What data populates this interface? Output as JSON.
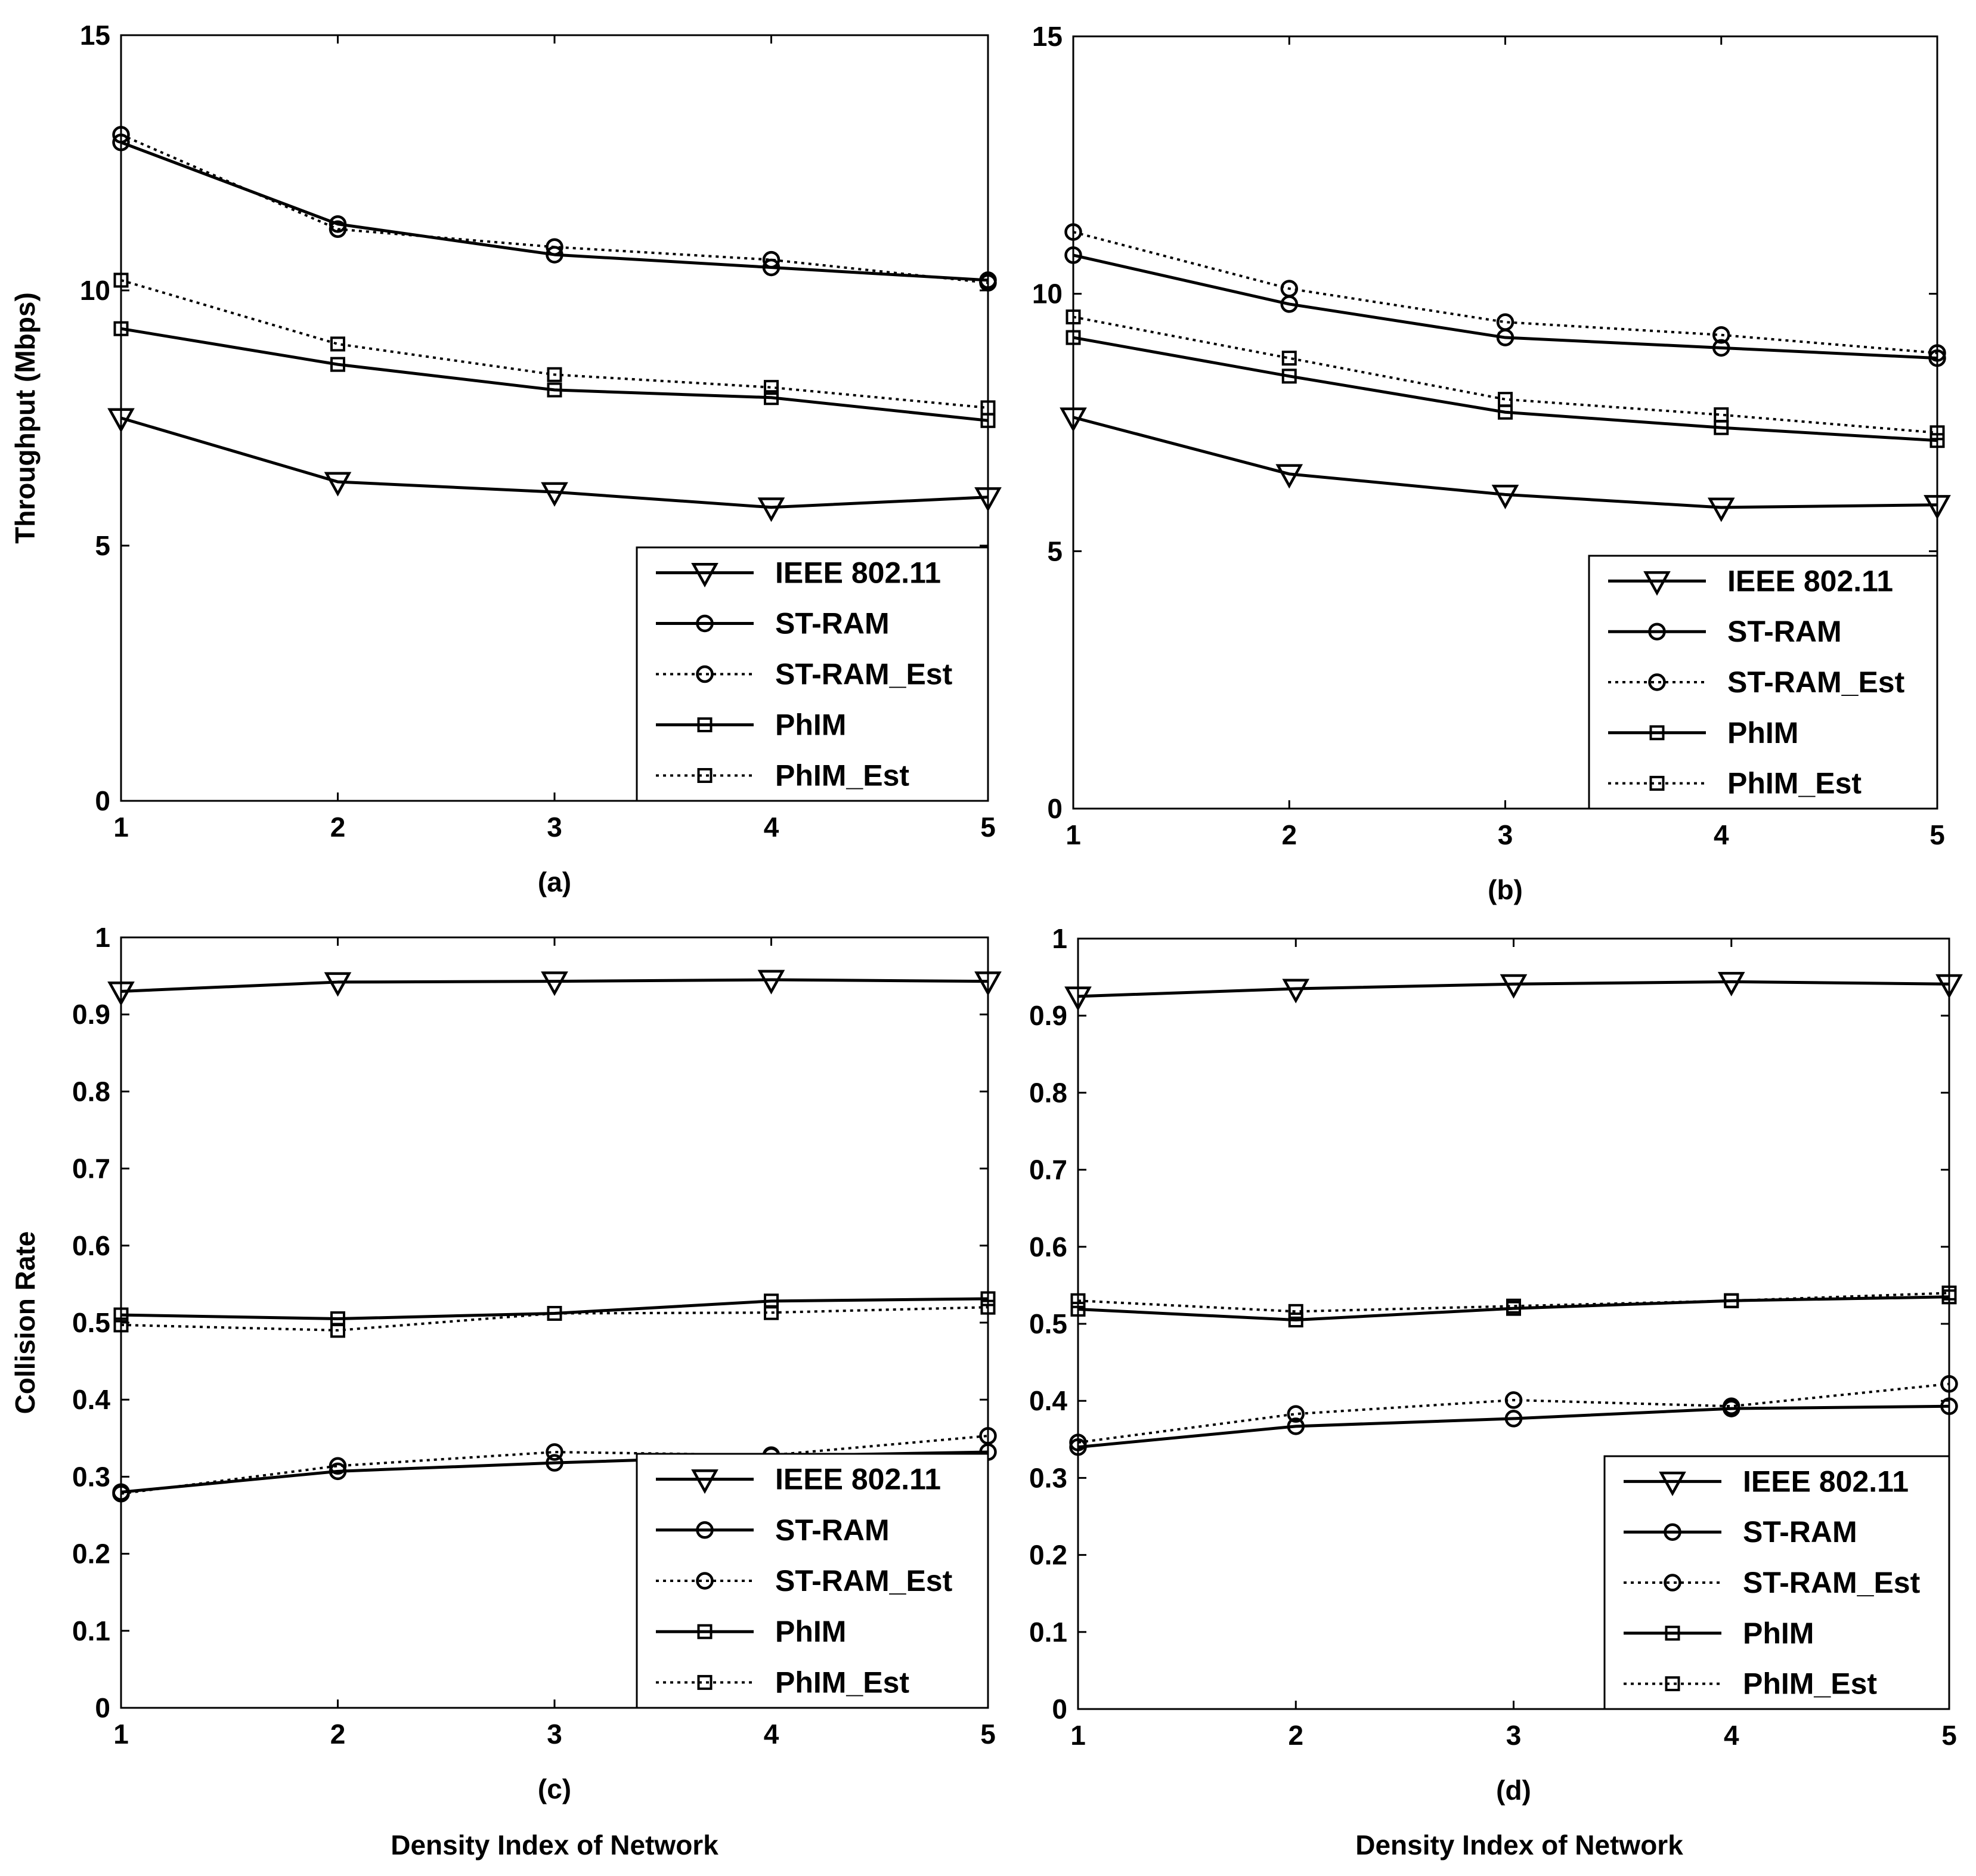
{
  "x_axis_label": "Density Index of Network",
  "chart_data": [
    {
      "type": "line",
      "panel_label": "(a)",
      "ylabel": "Throughput (Mbps)",
      "xlabel": "",
      "x": [
        1,
        2,
        3,
        4,
        5
      ],
      "xlim": [
        1,
        5
      ],
      "ylim": [
        0,
        15
      ],
      "xticks": [
        "1",
        "2",
        "3",
        "4",
        "5"
      ],
      "yticks": [
        "0",
        "5",
        "10",
        "15"
      ],
      "legend_position": "bottom-right",
      "series": [
        {
          "name": "IEEE 802.11",
          "marker": "triangle-down",
          "style": "solid",
          "values": [
            7.5,
            6.25,
            6.05,
            5.75,
            5.95
          ]
        },
        {
          "name": "ST-RAM",
          "marker": "circle",
          "style": "solid",
          "values": [
            12.9,
            11.3,
            10.7,
            10.45,
            10.2
          ]
        },
        {
          "name": "ST-RAM_Est",
          "marker": "circle",
          "style": "dotted",
          "values": [
            13.05,
            11.2,
            10.85,
            10.6,
            10.15
          ]
        },
        {
          "name": "PhIM",
          "marker": "square",
          "style": "solid",
          "values": [
            9.25,
            8.55,
            8.05,
            7.9,
            7.45
          ]
        },
        {
          "name": "PhIM_Est",
          "marker": "square",
          "style": "dotted",
          "values": [
            10.2,
            8.95,
            8.35,
            8.1,
            7.7
          ]
        }
      ]
    },
    {
      "type": "line",
      "panel_label": "(b)",
      "ylabel": "",
      "xlabel": "",
      "x": [
        1,
        2,
        3,
        4,
        5
      ],
      "xlim": [
        1,
        5
      ],
      "ylim": [
        0,
        15
      ],
      "xticks": [
        "1",
        "2",
        "3",
        "4",
        "5"
      ],
      "yticks": [
        "0",
        "5",
        "10",
        "15"
      ],
      "legend_position": "bottom-right",
      "series": [
        {
          "name": "IEEE 802.11",
          "marker": "triangle-down",
          "style": "solid",
          "values": [
            7.6,
            6.5,
            6.1,
            5.85,
            5.9
          ]
        },
        {
          "name": "ST-RAM",
          "marker": "circle",
          "style": "solid",
          "values": [
            10.75,
            9.8,
            9.15,
            8.95,
            8.75
          ]
        },
        {
          "name": "ST-RAM_Est",
          "marker": "circle",
          "style": "dotted",
          "values": [
            11.2,
            10.1,
            9.45,
            9.2,
            8.85
          ]
        },
        {
          "name": "PhIM",
          "marker": "square",
          "style": "solid",
          "values": [
            9.15,
            8.4,
            7.7,
            7.4,
            7.15
          ]
        },
        {
          "name": "PhIM_Est",
          "marker": "square",
          "style": "dotted",
          "values": [
            9.55,
            8.75,
            7.95,
            7.65,
            7.3
          ]
        }
      ]
    },
    {
      "type": "line",
      "panel_label": "(c)",
      "ylabel": "Collision Rate",
      "xlabel": "",
      "x": [
        1,
        2,
        3,
        4,
        5
      ],
      "xlim": [
        1,
        5
      ],
      "ylim": [
        0,
        1
      ],
      "xticks": [
        "1",
        "2",
        "3",
        "4",
        "5"
      ],
      "yticks": [
        "0",
        "0.1",
        "0.2",
        "0.3",
        "0.4",
        "0.5",
        "0.6",
        "0.7",
        "0.8",
        "0.9",
        "1"
      ],
      "legend_position": "bottom-right",
      "series": [
        {
          "name": "IEEE 802.11",
          "marker": "triangle-down",
          "style": "solid",
          "values": [
            0.93,
            0.942,
            0.943,
            0.945,
            0.943
          ]
        },
        {
          "name": "ST-RAM",
          "marker": "circle",
          "style": "solid",
          "values": [
            0.28,
            0.307,
            0.318,
            0.327,
            0.332
          ]
        },
        {
          "name": "ST-RAM_Est",
          "marker": "circle",
          "style": "dotted",
          "values": [
            0.278,
            0.314,
            0.332,
            0.328,
            0.353
          ]
        },
        {
          "name": "PhIM",
          "marker": "square",
          "style": "solid",
          "values": [
            0.51,
            0.505,
            0.512,
            0.528,
            0.531
          ]
        },
        {
          "name": "PhIM_Est",
          "marker": "square",
          "style": "dotted",
          "values": [
            0.497,
            0.49,
            0.512,
            0.513,
            0.52
          ]
        }
      ]
    },
    {
      "type": "line",
      "panel_label": "(d)",
      "ylabel": "",
      "xlabel": "",
      "x": [
        1,
        2,
        3,
        4,
        5
      ],
      "xlim": [
        1,
        5
      ],
      "ylim": [
        0,
        1
      ],
      "xticks": [
        "1",
        "2",
        "3",
        "4",
        "5"
      ],
      "yticks": [
        "0",
        "0.1",
        "0.2",
        "0.3",
        "0.4",
        "0.5",
        "0.6",
        "0.7",
        "0.8",
        "0.9",
        "1"
      ],
      "legend_position": "bottom-right",
      "series": [
        {
          "name": "IEEE 802.11",
          "marker": "triangle-down",
          "style": "solid",
          "values": [
            0.925,
            0.935,
            0.941,
            0.944,
            0.941
          ]
        },
        {
          "name": "ST-RAM",
          "marker": "circle",
          "style": "solid",
          "values": [
            0.34,
            0.367,
            0.377,
            0.39,
            0.393
          ]
        },
        {
          "name": "ST-RAM_Est",
          "marker": "circle",
          "style": "dotted",
          "values": [
            0.346,
            0.383,
            0.401,
            0.393,
            0.422
          ]
        },
        {
          "name": "PhIM",
          "marker": "square",
          "style": "solid",
          "values": [
            0.519,
            0.505,
            0.52,
            0.53,
            0.535
          ]
        },
        {
          "name": "PhIM_Est",
          "marker": "square",
          "style": "dotted",
          "values": [
            0.53,
            0.516,
            0.523,
            0.53,
            0.54
          ]
        }
      ]
    }
  ]
}
